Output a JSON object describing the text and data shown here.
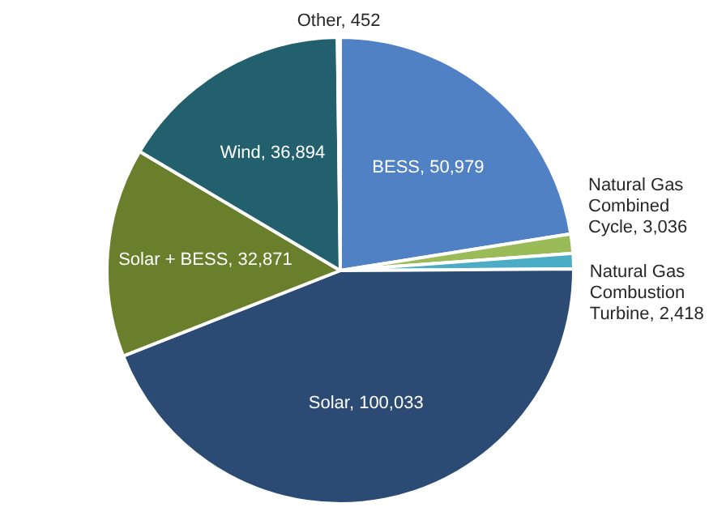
{
  "chart_data": {
    "type": "pie",
    "categories": [
      "BESS",
      "Natural Gas Combined Cycle",
      "Natural Gas Combustion Turbine",
      "Solar",
      "Solar + BESS",
      "Wind",
      "Other"
    ],
    "values": [
      50979,
      3036,
      2418,
      100033,
      32871,
      36894,
      452
    ],
    "value_labels": [
      "50,979",
      "3,036",
      "2,418",
      "100,033",
      "32,871",
      "36,894",
      "452"
    ],
    "colors": [
      "#4f81c4",
      "#9bbb59",
      "#4bacc6",
      "#2c4b74",
      "#6a7f2c",
      "#23606e",
      "#f2f2f2"
    ],
    "legend": false
  }
}
